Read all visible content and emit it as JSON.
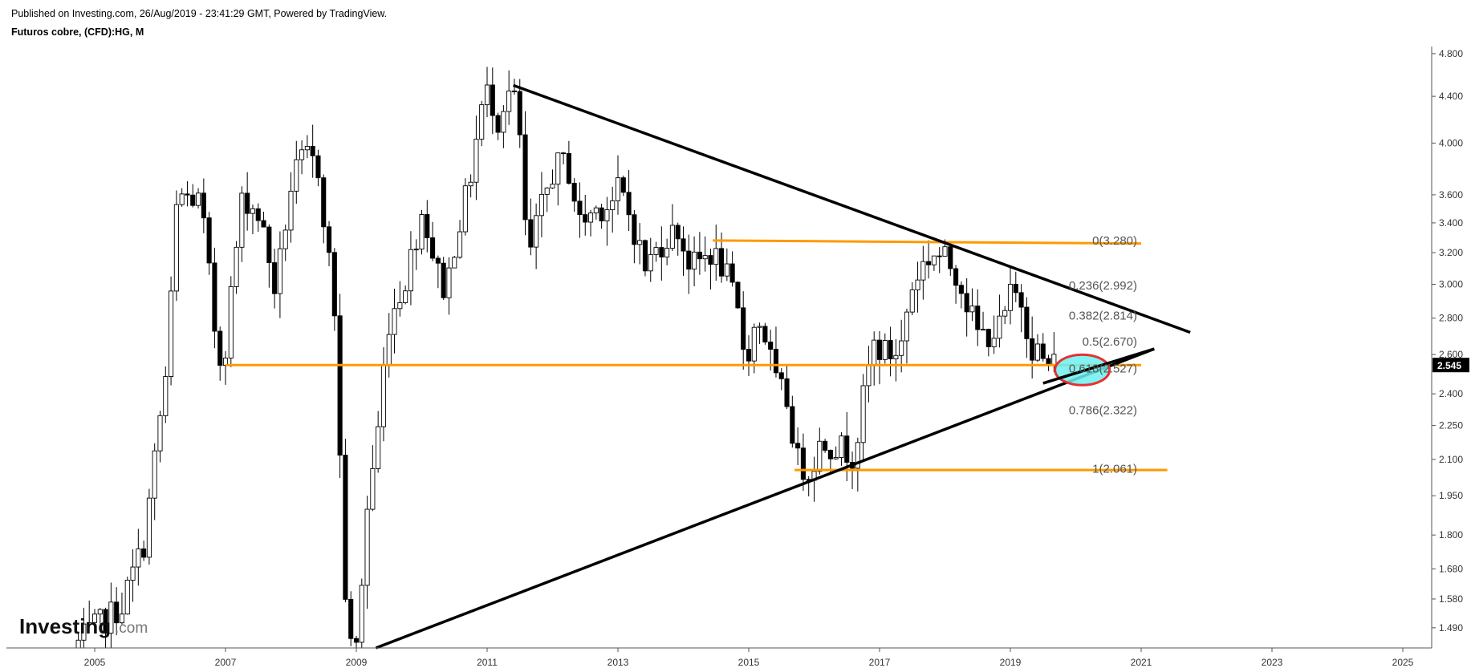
{
  "header": {
    "published": "Published on Investing.com, 26/Aug/2019 - 23:41:29 GMT, Powered by TradingView.",
    "symbol": "Futuros cobre, (CFD):HG, M"
  },
  "brand": {
    "name": "Investing",
    "suffix": ".com"
  },
  "colors": {
    "trendline": "#000000",
    "horizontal_line": "#ff9900",
    "highlight_fill": "#6cf0f0",
    "highlight_stroke": "#e53030",
    "price_tag_bg": "#000000",
    "price_tag_text": "#ffffff",
    "axis_line": "#555555"
  },
  "chart_data": {
    "type": "candlestick",
    "timeframe": "M",
    "y_scale": "log",
    "ylim": [
      1.43,
      4.87
    ],
    "xlim": [
      2004.0,
      2025.0
    ],
    "x_ticks": [
      "2005",
      "2007",
      "2009",
      "2011",
      "2013",
      "2015",
      "2017",
      "2019",
      "2021",
      "2023",
      "2025"
    ],
    "y_ticks": [
      "1.490",
      "1.580",
      "1.680",
      "1.800",
      "1.950",
      "2.100",
      "2.250",
      "2.400",
      "2.600",
      "2.800",
      "3.000",
      "3.200",
      "3.400",
      "3.600",
      "4.000",
      "4.400",
      "4.800"
    ],
    "last_price": "2.545",
    "fibonacci": [
      {
        "label": "0(3.280)",
        "value": 3.28
      },
      {
        "label": "0.236(2.992)",
        "value": 2.992
      },
      {
        "label": "0.382(2.814)",
        "value": 2.814
      },
      {
        "label": "0.5(2.670)",
        "value": 2.67
      },
      {
        "label": "0.618(2.527)",
        "value": 2.527
      },
      {
        "label": "0.786(2.322)",
        "value": 2.322
      },
      {
        "label": "1(2.061)",
        "value": 2.061
      }
    ],
    "trendlines": [
      {
        "name": "descending resistance",
        "x1": 2011.4,
        "y1": 4.5,
        "x2": 2021.75,
        "y2": 2.72
      },
      {
        "name": "ascending support",
        "x1": 2009.3,
        "y1": 1.43,
        "x2": 2021.2,
        "y2": 2.63
      }
    ],
    "horizontal_lines": [
      {
        "x1": 2007.0,
        "x2": 2021.0,
        "y": 2.545
      },
      {
        "x1": 2014.45,
        "x2": 2021.0,
        "y1": 3.28,
        "y2": 3.26
      },
      {
        "x1": 2015.7,
        "x2": 2021.4,
        "y": 2.055
      }
    ],
    "highlight": {
      "x": 2020.1,
      "y": 2.52
    },
    "anchors": [
      [
        2004.75,
        1.43
      ],
      [
        2005.5,
        1.56
      ],
      [
        2005.85,
        1.78
      ],
      [
        2006.0,
        2.1
      ],
      [
        2006.2,
        2.55
      ],
      [
        2006.35,
        3.6
      ],
      [
        2006.7,
        3.55
      ],
      [
        2006.95,
        2.62
      ],
      [
        2007.05,
        2.55
      ],
      [
        2007.2,
        3.05
      ],
      [
        2007.35,
        3.6
      ],
      [
        2007.6,
        3.45
      ],
      [
        2007.85,
        2.95
      ],
      [
        2008.1,
        3.7
      ],
      [
        2008.3,
        3.9
      ],
      [
        2008.5,
        3.8
      ],
      [
        2008.65,
        3.2
      ],
      [
        2008.75,
        2.85
      ],
      [
        2008.85,
        1.95
      ],
      [
        2008.95,
        1.43
      ],
      [
        2009.1,
        1.43
      ],
      [
        2009.25,
        1.9
      ],
      [
        2009.45,
        2.3
      ],
      [
        2009.55,
        2.75
      ],
      [
        2009.85,
        3.05
      ],
      [
        2010.1,
        3.5
      ],
      [
        2010.3,
        3.1
      ],
      [
        2010.45,
        2.95
      ],
      [
        2010.6,
        3.3
      ],
      [
        2010.8,
        3.65
      ],
      [
        2011.0,
        4.3
      ],
      [
        2011.1,
        4.45
      ],
      [
        2011.25,
        4.2
      ],
      [
        2011.4,
        4.45
      ],
      [
        2011.55,
        4.3
      ],
      [
        2011.7,
        3.1
      ],
      [
        2011.85,
        3.4
      ],
      [
        2012.1,
        3.8
      ],
      [
        2012.3,
        3.85
      ],
      [
        2012.5,
        3.4
      ],
      [
        2012.75,
        3.5
      ],
      [
        2013.0,
        3.55
      ],
      [
        2013.1,
        3.65
      ],
      [
        2013.3,
        3.4
      ],
      [
        2013.5,
        3.1
      ],
      [
        2013.8,
        3.3
      ],
      [
        2014.0,
        3.35
      ],
      [
        2014.2,
        3.1
      ],
      [
        2014.5,
        3.2
      ],
      [
        2014.7,
        3.1
      ],
      [
        2014.9,
        2.85
      ],
      [
        2015.0,
        2.65
      ],
      [
        2015.1,
        2.62
      ],
      [
        2015.2,
        2.8
      ],
      [
        2015.3,
        2.75
      ],
      [
        2015.5,
        2.45
      ],
      [
        2015.7,
        2.35
      ],
      [
        2015.8,
        2.1
      ],
      [
        2016.0,
        2.05
      ],
      [
        2016.2,
        2.18
      ],
      [
        2016.5,
        2.15
      ],
      [
        2016.7,
        2.12
      ],
      [
        2016.9,
        2.5
      ],
      [
        2017.0,
        2.65
      ],
      [
        2017.2,
        2.6
      ],
      [
        2017.4,
        2.62
      ],
      [
        2017.55,
        2.95
      ],
      [
        2017.7,
        3.1
      ],
      [
        2017.9,
        3.2
      ],
      [
        2018.1,
        3.15
      ],
      [
        2018.3,
        3.05
      ],
      [
        2018.45,
        2.85
      ],
      [
        2018.6,
        2.7
      ],
      [
        2018.8,
        2.72
      ],
      [
        2018.95,
        2.75
      ],
      [
        2019.1,
        2.95
      ],
      [
        2019.25,
        2.9
      ],
      [
        2019.4,
        2.65
      ],
      [
        2019.5,
        2.62
      ],
      [
        2019.6,
        2.55
      ]
    ]
  }
}
